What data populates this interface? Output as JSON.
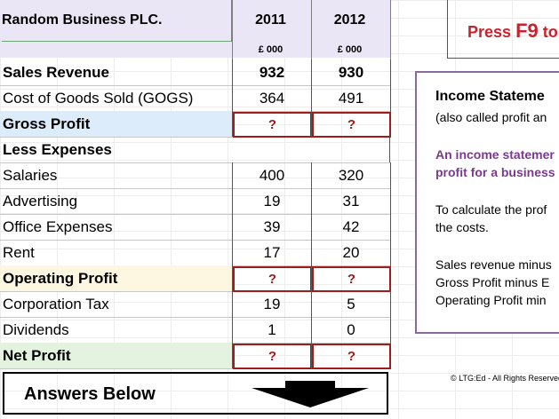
{
  "sheet": {
    "company": "Random Business PLC.",
    "years": [
      "2011",
      "2012"
    ],
    "units": [
      "£ 000",
      "£ 000"
    ],
    "rows": [
      {
        "label": "Sales Revenue",
        "v2011": "932",
        "v2012": "930"
      },
      {
        "label": "Cost of Goods Sold (GOGS)",
        "v2011": "364",
        "v2012": "491"
      },
      {
        "label": "Gross Profit",
        "v2011": "?",
        "v2012": "?"
      },
      {
        "label": "Less Expenses",
        "v2011": "",
        "v2012": ""
      },
      {
        "label": "Salaries",
        "v2011": "400",
        "v2012": "320"
      },
      {
        "label": "Advertising",
        "v2011": "19",
        "v2012": "31"
      },
      {
        "label": "Office Expenses",
        "v2011": "39",
        "v2012": "42"
      },
      {
        "label": "Rent",
        "v2011": "17",
        "v2012": "20"
      },
      {
        "label": "Operating Profit",
        "v2011": "?",
        "v2012": "?"
      },
      {
        "label": "Corporation Tax",
        "v2011": "19",
        "v2012": "5"
      },
      {
        "label": "Dividends",
        "v2011": "1",
        "v2012": "0"
      },
      {
        "label": "Net Profit",
        "v2011": "?",
        "v2012": "?"
      }
    ],
    "answers_label": "Answers Below"
  },
  "press": {
    "prefix": "Press",
    "key": "F9",
    "suffix": "to"
  },
  "info": {
    "title": "Income Stateme",
    "subtitle": "(also called profit an",
    "highlight1": "An income statemer",
    "highlight2": "profit for a business",
    "calc1": "To calculate the prof",
    "calc2": "the costs.",
    "line1": "Sales revenue minus",
    "line2": "Gross Profit minus E",
    "line3": "Operating Profit min"
  },
  "copyright": "© LTG:Ed - All Rights Reserved",
  "colors": {
    "gross_bg": "#dcecfa",
    "operating_bg": "#fdf6e1",
    "net_bg": "#e3f3df",
    "question_red": "#a31c1c",
    "press_red": "#c8222d",
    "info_purple": "#7a3a8c"
  }
}
